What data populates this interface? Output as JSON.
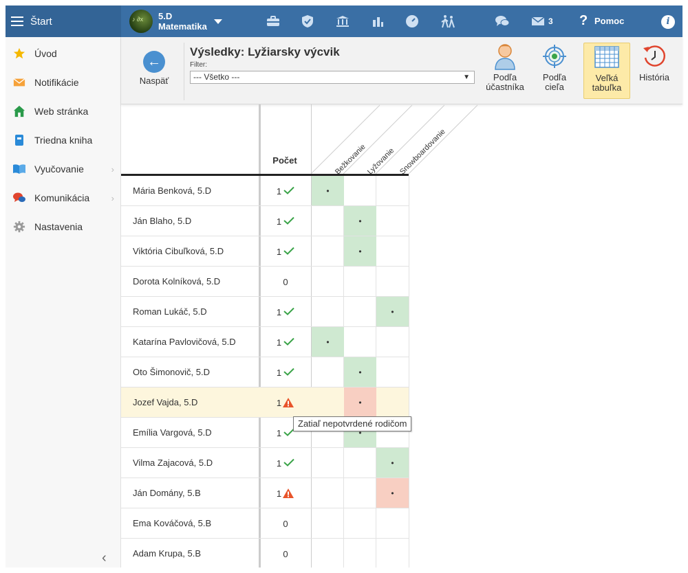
{
  "app": {
    "menu_label": "Štart"
  },
  "class_selector": {
    "line1": "5.D",
    "line2": "Matematika"
  },
  "topbar": {
    "messages_count": "3",
    "help_label": "Pomoc",
    "help_symbol": "?",
    "info_symbol": "i"
  },
  "sidebar": {
    "items": [
      {
        "label": "Úvod",
        "icon": "star-icon"
      },
      {
        "label": "Notifikácie",
        "icon": "envelope-icon"
      },
      {
        "label": "Web stránka",
        "icon": "home-icon"
      },
      {
        "label": "Triedna kniha",
        "icon": "book-icon"
      },
      {
        "label": "Vyučovanie",
        "icon": "open-book-icon"
      },
      {
        "label": "Komunikácia",
        "icon": "chat-icon"
      },
      {
        "label": "Nastavenia",
        "icon": "gear-icon"
      }
    ],
    "collapse_symbol": "‹"
  },
  "toolbar": {
    "back_label": "Naspäť",
    "title": "Výsledky: Lyžiarsky výcvik",
    "filter_label": "Filter:",
    "filter_value": "--- Všetko ---",
    "views": [
      {
        "line1": "Podľa",
        "line2": "účastníka"
      },
      {
        "line1": "Podľa",
        "line2": "cieľa"
      },
      {
        "line1": "Veľká",
        "line2": "tabuľka"
      },
      {
        "line1": "História",
        "line2": ""
      }
    ]
  },
  "grid": {
    "count_header": "Počet",
    "categories": [
      "Bežkovanie",
      "Lyžovanie",
      "Snowboardovanie"
    ],
    "mark": "•",
    "rows": [
      {
        "name": "Mária Benková, 5.D",
        "count": "1",
        "status": "ok",
        "cells": [
          "green",
          "",
          ""
        ]
      },
      {
        "name": "Ján Blaho, 5.D",
        "count": "1",
        "status": "ok",
        "cells": [
          "",
          "green",
          ""
        ]
      },
      {
        "name": "Viktória Cibuľková, 5.D",
        "count": "1",
        "status": "ok",
        "cells": [
          "",
          "green",
          ""
        ]
      },
      {
        "name": "Dorota Kolníková, 5.D",
        "count": "0",
        "status": "",
        "cells": [
          "",
          "",
          ""
        ]
      },
      {
        "name": "Roman Lukáč, 5.D",
        "count": "1",
        "status": "ok",
        "cells": [
          "",
          "",
          "green"
        ]
      },
      {
        "name": "Katarína Pavlovičová, 5.D",
        "count": "1",
        "status": "ok",
        "cells": [
          "green",
          "",
          ""
        ]
      },
      {
        "name": "Oto Šimonovič, 5.D",
        "count": "1",
        "status": "ok",
        "cells": [
          "",
          "green",
          ""
        ]
      },
      {
        "name": "Jozef Vajda, 5.D",
        "count": "1",
        "status": "warn",
        "cells": [
          "",
          "red",
          ""
        ],
        "highlight": true
      },
      {
        "name": "Emília Vargová, 5.D",
        "count": "1",
        "status": "ok",
        "cells": [
          "",
          "green",
          ""
        ]
      },
      {
        "name": "Vilma Zajacová, 5.D",
        "count": "1",
        "status": "ok",
        "cells": [
          "",
          "",
          "green"
        ]
      },
      {
        "name": "Ján Domány, 5.B",
        "count": "1",
        "status": "warn",
        "cells": [
          "",
          "",
          "red"
        ]
      },
      {
        "name": "Ema Kováčová, 5.B",
        "count": "0",
        "status": "",
        "cells": [
          "",
          "",
          ""
        ]
      },
      {
        "name": "Adam Krupa, 5.B",
        "count": "0",
        "status": "",
        "cells": [
          "",
          "",
          ""
        ]
      }
    ],
    "tooltip": "Zatiaľ nepotvrdené rodičom"
  }
}
